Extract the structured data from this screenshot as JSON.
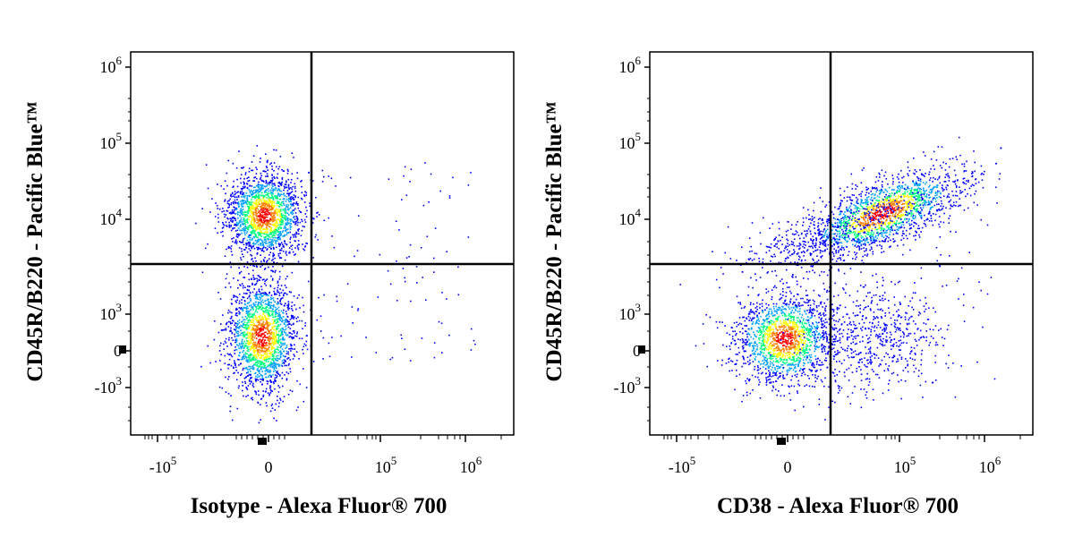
{
  "chart_data": [
    {
      "type": "scatter",
      "title": "",
      "xlabel": "Isotype - Alexa Fluor® 700",
      "ylabel": "CD45R/B220 - Pacific Blue™",
      "x_scale": "biexponential",
      "y_scale": "biexponential",
      "x_ticks": [
        {
          "base": "-10",
          "exp": "5"
        },
        {
          "base": "0",
          "exp": ""
        },
        {
          "base": "10",
          "exp": "5"
        },
        {
          "base": "10",
          "exp": "6"
        }
      ],
      "y_ticks": [
        {
          "base": "10",
          "exp": "6"
        },
        {
          "base": "10",
          "exp": "5"
        },
        {
          "base": "10",
          "exp": "4"
        },
        {
          "base": "10",
          "exp": "3"
        },
        {
          "base": "0",
          "exp": ""
        },
        {
          "base": "-10",
          "exp": "3"
        }
      ],
      "gate": {
        "x": 2500,
        "y": 3000
      },
      "populations": [
        {
          "name": "",
          "x_center": 0,
          "y_center": 12000,
          "density": "high"
        },
        {
          "name": "",
          "x_center": 0,
          "y_center": 300,
          "density": "high"
        }
      ],
      "scale_colors": [
        "#0000ff",
        "#00a0ff",
        "#00ff80",
        "#ffff00",
        "#ff8000",
        "#ff0000"
      ]
    },
    {
      "type": "scatter",
      "title": "",
      "xlabel": "CD38 - Alexa Fluor® 700",
      "ylabel": "CD45R/B220 - Pacific Blue™",
      "x_scale": "biexponential",
      "y_scale": "biexponential",
      "x_ticks": [
        {
          "base": "-10",
          "exp": "5"
        },
        {
          "base": "0",
          "exp": ""
        },
        {
          "base": "10",
          "exp": "5"
        },
        {
          "base": "10",
          "exp": "6"
        }
      ],
      "y_ticks": [
        {
          "base": "10",
          "exp": "6"
        },
        {
          "base": "10",
          "exp": "5"
        },
        {
          "base": "10",
          "exp": "4"
        },
        {
          "base": "10",
          "exp": "3"
        },
        {
          "base": "0",
          "exp": ""
        },
        {
          "base": "-10",
          "exp": "3"
        }
      ],
      "gate": {
        "x": 2500,
        "y": 3000
      },
      "populations": [
        {
          "name": "",
          "x_center": 60000,
          "y_center": 12000,
          "density": "high"
        },
        {
          "name": "",
          "x_center": 0,
          "y_center": 300,
          "density": "high"
        }
      ],
      "scale_colors": [
        "#0000ff",
        "#00a0ff",
        "#00ff80",
        "#ffff00",
        "#ff8000",
        "#ff0000"
      ]
    }
  ]
}
